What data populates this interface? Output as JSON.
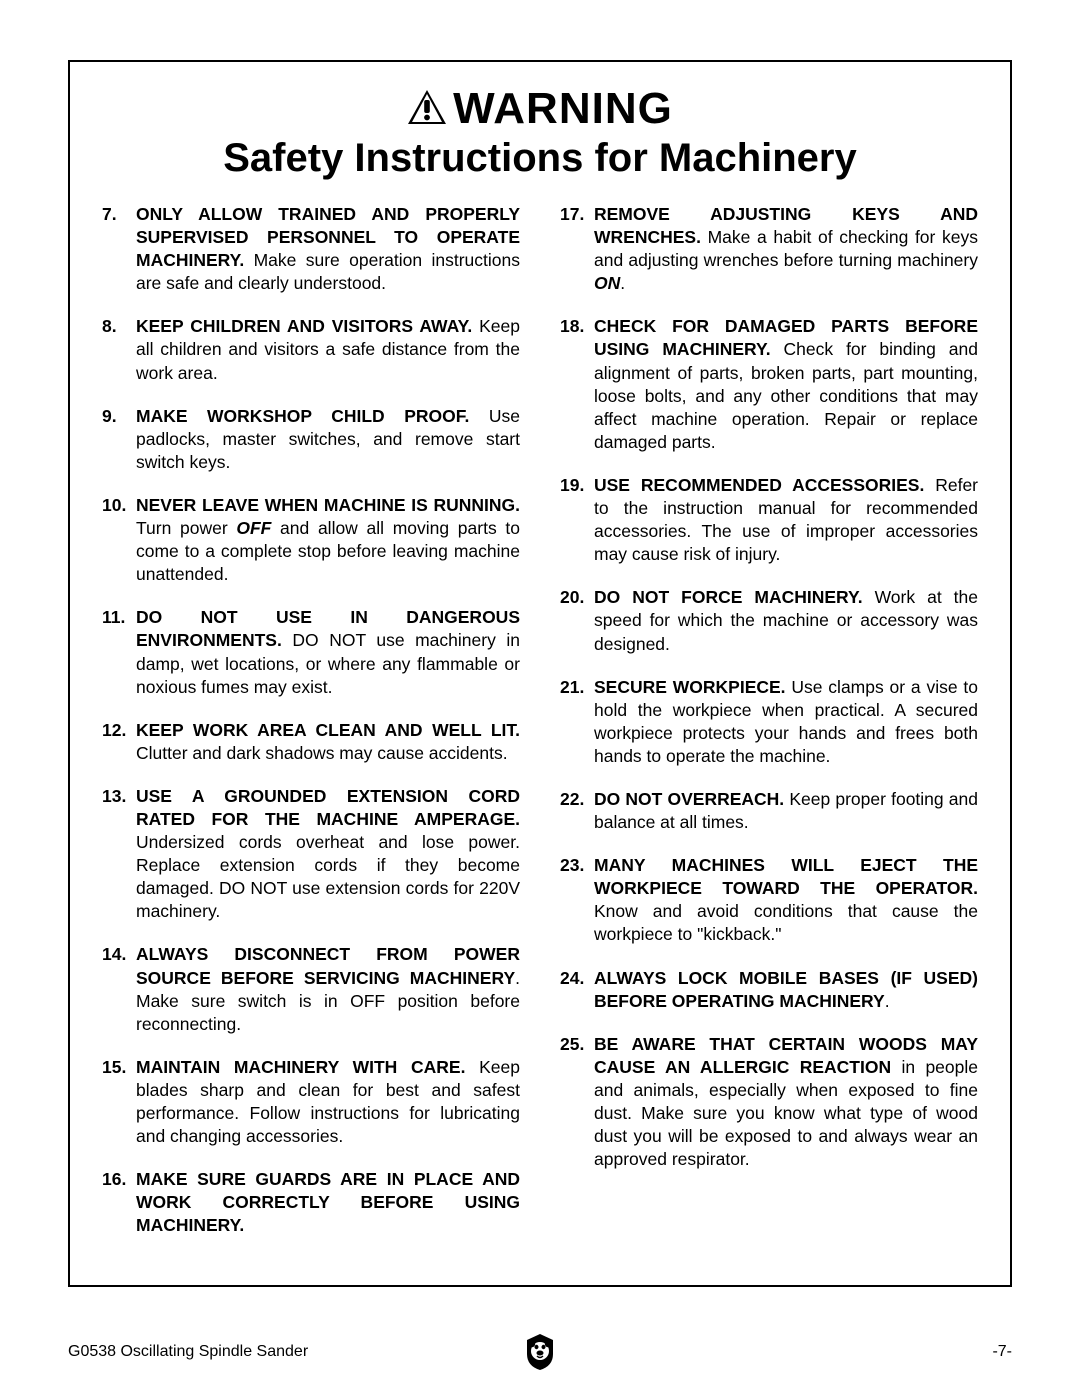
{
  "colors": {
    "text": "#000000",
    "background": "#ffffff",
    "border": "#000000"
  },
  "fonts": {
    "family": "Arial, Helvetica, sans-serif",
    "warning_size": 44,
    "subtitle_size": 40,
    "body_size": 17.5,
    "footer_size": 16
  },
  "header": {
    "warning": "WARNING",
    "subtitle": "Safety Instructions for Machinery"
  },
  "left_items": [
    {
      "num": "7.",
      "segments": [
        {
          "t": "ONLY ALLOW TRAINED AND PROPERLY SUPERVISED PERSONNEL TO OPERATE MACHINERY.",
          "s": "bold"
        },
        {
          "t": " Make sure operation instructions are safe and clearly understood.",
          "s": ""
        }
      ]
    },
    {
      "num": "8.",
      "segments": [
        {
          "t": "KEEP CHILDREN AND VISITORS AWAY.",
          "s": "bold"
        },
        {
          "t": " Keep all children and visitors a safe distance from the work area.",
          "s": ""
        }
      ]
    },
    {
      "num": "9.",
      "segments": [
        {
          "t": "MAKE WORKSHOP CHILD PROOF.",
          "s": "bold"
        },
        {
          "t": " Use padlocks, master switches, and remove start switch keys.",
          "s": ""
        }
      ]
    },
    {
      "num": "10.",
      "segments": [
        {
          "t": "NEVER LEAVE WHEN MACHINE IS RUNNING.",
          "s": "bold"
        },
        {
          "t": " Turn power ",
          "s": ""
        },
        {
          "t": "OFF",
          "s": "bolditalic"
        },
        {
          "t": " and allow all moving parts to come to a complete stop before leaving machine unattended.",
          "s": ""
        }
      ]
    },
    {
      "num": "11.",
      "segments": [
        {
          "t": "DO NOT USE IN DANGEROUS ENVIRONMENTS.",
          "s": "bold"
        },
        {
          "t": " DO NOT use machinery in damp, wet locations, or where any flammable or noxious fumes may exist.",
          "s": ""
        }
      ]
    },
    {
      "num": "12.",
      "segments": [
        {
          "t": "KEEP WORK AREA CLEAN AND WELL LIT.",
          "s": "bold"
        },
        {
          "t": " Clutter and dark shadows may cause accidents.",
          "s": ""
        }
      ]
    },
    {
      "num": "13.",
      "segments": [
        {
          "t": "USE A GROUNDED EXTENSION CORD RATED FOR THE MACHINE AMPERAGE.",
          "s": "bold"
        },
        {
          "t": " Undersized cords overheat and lose power. Replace extension cords if they become damaged. DO NOT use extension cords for 220V machinery.",
          "s": ""
        }
      ]
    },
    {
      "num": "14.",
      "segments": [
        {
          "t": "ALWAYS DISCONNECT FROM POWER SOURCE BEFORE SERVICING MACHINERY",
          "s": "bold"
        },
        {
          "t": ". Make sure switch is in OFF position before reconnecting.",
          "s": ""
        }
      ]
    },
    {
      "num": "15.",
      "segments": [
        {
          "t": "MAINTAIN MACHINERY WITH CARE.",
          "s": "bold"
        },
        {
          "t": " Keep blades sharp and clean for best and safest performance. Follow instructions for lubricating and changing accessories.",
          "s": ""
        }
      ]
    },
    {
      "num": "16.",
      "segments": [
        {
          "t": "MAKE SURE GUARDS ARE IN PLACE AND WORK CORRECTLY BEFORE USING MACHINERY.",
          "s": "bold"
        }
      ]
    }
  ],
  "right_items": [
    {
      "num": "17.",
      "segments": [
        {
          "t": "REMOVE ADJUSTING KEYS AND WRENCHES.",
          "s": "bold"
        },
        {
          "t": " Make a habit of checking for keys and adjusting wrenches before turning machinery ",
          "s": ""
        },
        {
          "t": "ON",
          "s": "bolditalic"
        },
        {
          "t": ".",
          "s": ""
        }
      ]
    },
    {
      "num": "18.",
      "segments": [
        {
          "t": "CHECK FOR DAMAGED PARTS BEFORE USING MACHINERY.",
          "s": "bold"
        },
        {
          "t": " Check for binding and alignment of parts, broken parts, part mounting, loose bolts, and any other conditions that may affect machine operation. Repair or replace damaged parts.",
          "s": ""
        }
      ]
    },
    {
      "num": "19.",
      "segments": [
        {
          "t": "USE RECOMMENDED ACCESSORIES.",
          "s": "bold"
        },
        {
          "t": " Refer to the instruction manual for recommended accessories. The use of improper accessories may cause risk of injury.",
          "s": ""
        }
      ]
    },
    {
      "num": "20.",
      "segments": [
        {
          "t": "DO NOT FORCE MACHINERY.",
          "s": "bold"
        },
        {
          "t": " Work at the speed for which the machine or accessory was designed.",
          "s": ""
        }
      ]
    },
    {
      "num": "21.",
      "segments": [
        {
          "t": "SECURE WORKPIECE.",
          "s": "bold"
        },
        {
          "t": " Use clamps or a vise to hold the workpiece when practical. A secured workpiece protects your hands and frees both hands to operate the machine.",
          "s": ""
        }
      ]
    },
    {
      "num": "22.",
      "segments": [
        {
          "t": "DO NOT OVERREACH.",
          "s": "bold"
        },
        {
          "t": " Keep proper footing and balance at all times.",
          "s": ""
        }
      ]
    },
    {
      "num": "23.",
      "segments": [
        {
          "t": "MANY MACHINES WILL EJECT THE WORKPIECE TOWARD THE OPERATOR.",
          "s": "bold"
        },
        {
          "t": " Know and avoid conditions that cause the workpiece to \"kickback.\"",
          "s": ""
        }
      ]
    },
    {
      "num": "24.",
      "segments": [
        {
          "t": "ALWAYS LOCK MOBILE BASES (IF USED) BEFORE OPERATING MACHINERY",
          "s": "bold"
        },
        {
          "t": ".",
          "s": ""
        }
      ]
    },
    {
      "num": "25.",
      "segments": [
        {
          "t": "BE AWARE THAT CERTAIN WOODS MAY CAUSE AN ALLERGIC REACTION",
          "s": "bold"
        },
        {
          "t": " in people and animals, especially when exposed to fine dust. Make sure you know what type of wood dust you will be exposed to and always wear an approved respirator.",
          "s": ""
        }
      ]
    }
  ],
  "footer": {
    "left": "G0538 Oscillating Spindle Sander",
    "right": "-7-"
  }
}
